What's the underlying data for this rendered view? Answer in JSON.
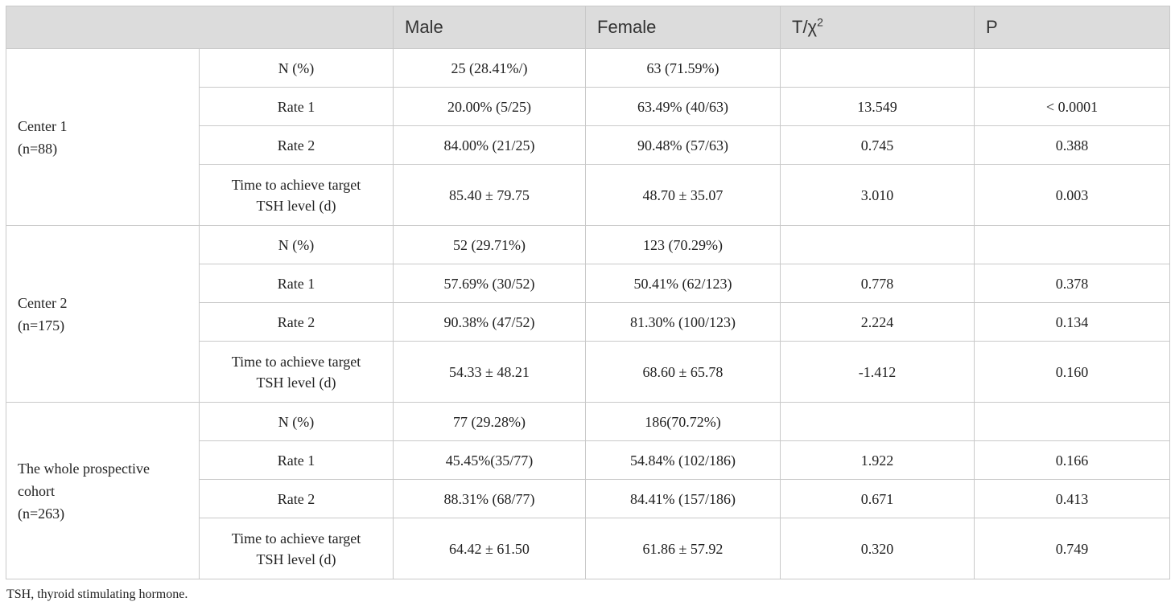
{
  "header": {
    "blank": "",
    "male": "Male",
    "female": "Female",
    "stat_main": "T/χ",
    "stat_sup": "2",
    "p": "P"
  },
  "groups": [
    {
      "label_line1": "Center 1",
      "label_line2": "(n=88)",
      "rows": [
        {
          "measure": "N (%)",
          "male": "25 (28.41%/)",
          "female": "63 (71.59%)",
          "stat": "",
          "p": ""
        },
        {
          "measure": "Rate 1",
          "male": "20.00% (5/25)",
          "female": "63.49% (40/63)",
          "stat": "13.549",
          "p": "< 0.0001"
        },
        {
          "measure": "Rate 2",
          "male": "84.00% (21/25)",
          "female": "90.48% (57/63)",
          "stat": "0.745",
          "p": "0.388"
        },
        {
          "measure_line1": "Time to achieve target",
          "measure_line2": "TSH level (d)",
          "male": "85.40 ± 79.75",
          "female": "48.70 ± 35.07",
          "stat": "3.010",
          "p": "0.003"
        }
      ]
    },
    {
      "label_line1": "Center 2",
      "label_line2": "(n=175)",
      "rows": [
        {
          "measure": "N (%)",
          "male": "52 (29.71%)",
          "female": "123 (70.29%)",
          "stat": "",
          "p": ""
        },
        {
          "measure": "Rate 1",
          "male": "57.69% (30/52)",
          "female": "50.41% (62/123)",
          "stat": "0.778",
          "p": "0.378"
        },
        {
          "measure": "Rate 2",
          "male": "90.38% (47/52)",
          "female": "81.30% (100/123)",
          "stat": "2.224",
          "p": "0.134"
        },
        {
          "measure_line1": "Time to achieve target",
          "measure_line2": "TSH level (d)",
          "male": "54.33 ± 48.21",
          "female": "68.60 ± 65.78",
          "stat": "-1.412",
          "p": "0.160"
        }
      ]
    },
    {
      "label_line1": "The whole prospective",
      "label_line2": "cohort",
      "label_line3": "(n=263)",
      "rows": [
        {
          "measure": "N (%)",
          "male": "77 (29.28%)",
          "female": "186(70.72%)",
          "stat": "",
          "p": ""
        },
        {
          "measure": "Rate 1",
          "male": "45.45%(35/77)",
          "female": "54.84% (102/186)",
          "stat": "1.922",
          "p": "0.166"
        },
        {
          "measure": "Rate 2",
          "male": "88.31% (68/77)",
          "female": "84.41% (157/186)",
          "stat": "0.671",
          "p": "0.413"
        },
        {
          "measure_line1": "Time to achieve target",
          "measure_line2": "TSH level (d)",
          "male": "64.42 ± 61.50",
          "female": "61.86 ± 57.92",
          "stat": "0.320",
          "p": "0.749"
        }
      ]
    }
  ],
  "footnote": "TSH, thyroid stimulating hormone."
}
